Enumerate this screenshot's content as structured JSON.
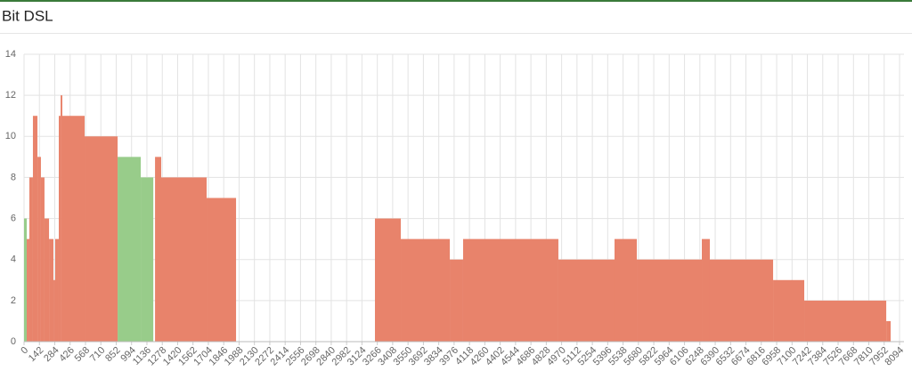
{
  "chart_data": {
    "type": "step-area",
    "title": "Bit DSL",
    "xlim": [
      0,
      8135
    ],
    "ylim": [
      0,
      14
    ],
    "yticks": [
      0,
      2,
      4,
      6,
      8,
      10,
      12,
      14
    ],
    "xticks": [
      0,
      142,
      284,
      426,
      568,
      710,
      852,
      994,
      1136,
      1278,
      1420,
      1562,
      1704,
      1846,
      1988,
      2130,
      2272,
      2414,
      2556,
      2698,
      2840,
      2982,
      3124,
      3266,
      3408,
      3550,
      3692,
      3834,
      3976,
      4118,
      4260,
      4402,
      4544,
      4686,
      4828,
      4970,
      5112,
      5254,
      5396,
      5538,
      5680,
      5822,
      5964,
      6106,
      6248,
      6390,
      6532,
      6674,
      6816,
      6958,
      7100,
      7242,
      7384,
      7526,
      7668,
      7810,
      7952,
      8094
    ],
    "grid": true,
    "series": [
      {
        "color": "#98cc8a",
        "bins": [
          0,
          25,
          865,
          1079,
          1195
        ],
        "values": [
          6,
          null,
          9,
          8
        ]
      },
      {
        "color": "#e8836b",
        "bins": [
          25,
          49,
          82,
          124,
          156,
          189,
          231,
          272,
          288,
          321,
          338,
          354,
          560,
          865,
          1211,
          1268,
          1688,
          1960,
          3244,
          3483,
          3936,
          4059,
          4940,
          5459,
          5665,
          6266,
          6340,
          6925,
          7213,
          7971,
          8012
        ],
        "values": [
          5,
          8,
          11,
          9,
          8,
          6,
          5,
          3,
          5,
          11,
          12,
          11,
          10,
          null,
          9,
          8,
          7,
          null,
          6,
          5,
          4,
          5,
          4,
          5,
          4,
          5,
          4,
          3,
          2,
          1
        ]
      }
    ]
  }
}
